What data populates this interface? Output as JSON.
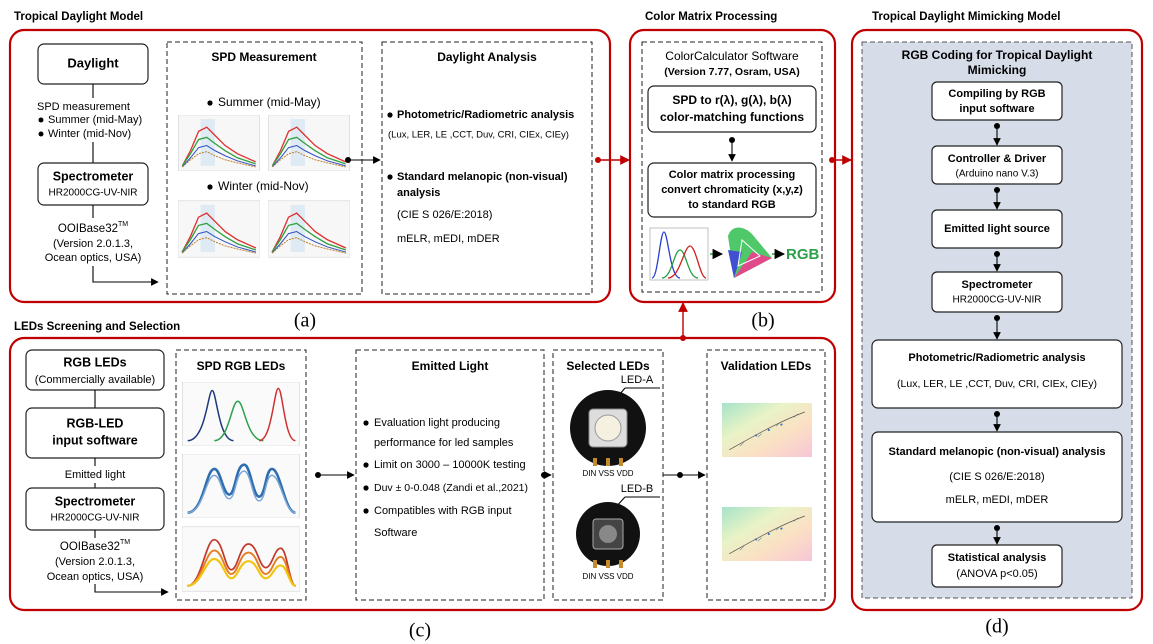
{
  "panel_a": {
    "title": "Tropical Daylight Model",
    "label": "(a)",
    "daylight": "Daylight",
    "spd_measurement": "SPD measurement",
    "summer": "Summer (mid-May)",
    "winter": "Winter (mid-Nov)",
    "spectrometer": {
      "name": "Spectrometer",
      "model": "HR2000CG-UV-NIR"
    },
    "software": {
      "name": "OOIBase32",
      "mark": "TM",
      "lines": [
        "(Version 2.0.1.3,",
        "Ocean optics, USA)"
      ]
    },
    "spd_box": {
      "title": "SPD Measurement",
      "summer": "Summer (mid-May)",
      "winter": "Winter (mid-Nov)"
    },
    "analysis_box": {
      "title": "Daylight Analysis",
      "item1": "Photometric/Radiometric analysis",
      "item1_detail": "(Lux, LER, LE ,CCT, Duv, CRI, CIEx, CIEy)",
      "item2": [
        "Standard melanopic (non-visual)",
        "analysis"
      ],
      "item2_details": [
        "(CIE S 026/E:2018)",
        "mELR, mEDI, mDER"
      ]
    }
  },
  "panel_b": {
    "title": "Color Matrix Processing",
    "label": "(b)",
    "software": [
      "ColorCalculator Software",
      "(Version 7.77, Osram, USA)"
    ],
    "step1": [
      "SPD to r(λ), g(λ), b(λ)",
      "color-matching functions"
    ],
    "step2": [
      "Color matrix processing",
      "convert  chromaticity (x,y,z)",
      "to standard RGB"
    ],
    "output": "RGB"
  },
  "panel_c": {
    "title": "LEDs Screening and Selection",
    "label": "(c)",
    "rgb_leds": [
      "RGB LEDs",
      "(Commercially available)"
    ],
    "input_software": [
      "RGB-LED",
      "input software"
    ],
    "emitted": "Emitted light",
    "spectrometer": {
      "name": "Spectrometer",
      "model": "HR2000CG-UV-NIR"
    },
    "software": {
      "name": "OOIBase32",
      "mark": "TM",
      "lines": [
        "(Version 2.0.1.3,",
        "Ocean optics, USA)"
      ]
    },
    "spd_box": {
      "title": "SPD RGB LEDs"
    },
    "emitted_box": {
      "title": "Emitted Light",
      "bullets": [
        [
          "Evaluation light producing",
          "performance for led samples"
        ],
        [
          "Limit on 3000 – 10000K testing"
        ],
        [
          "Duv ± 0-0.048 (Zandi et al.,2021)"
        ],
        [
          "Compatibles with RGB  input",
          "Software"
        ]
      ]
    },
    "selected_box": {
      "title": "Selected LEDs",
      "led_a": "LED-A",
      "led_b": "LED-B",
      "pins_a": "DIN VSS VDD",
      "pins_b": "DIN VSS VDD"
    },
    "validation_box": {
      "title": "Validation LEDs"
    }
  },
  "panel_d": {
    "title": "Tropical Daylight Mimicking Model",
    "label": "(d)",
    "header": [
      "RGB Coding for Tropical Daylight",
      "Mimicking"
    ],
    "steps": [
      [
        "Compiling by RGB",
        "input software"
      ],
      [
        "Controller & Driver",
        "(Arduino nano V.3)"
      ],
      [
        "Emitted light source"
      ],
      [
        "Spectrometer",
        "HR2000CG-UV-NIR"
      ],
      [
        "Photometric/Radiometric analysis",
        "(Lux, LER, LE ,CCT, Duv, CRI, CIEx, CIEy)"
      ],
      [
        "Standard melanopic (non-visual) analysis",
        "(CIE S 026/E:2018)",
        "mELR, mEDI, mDER"
      ],
      [
        "Statistical analysis",
        "(ANOVA p<0.05)"
      ]
    ]
  }
}
